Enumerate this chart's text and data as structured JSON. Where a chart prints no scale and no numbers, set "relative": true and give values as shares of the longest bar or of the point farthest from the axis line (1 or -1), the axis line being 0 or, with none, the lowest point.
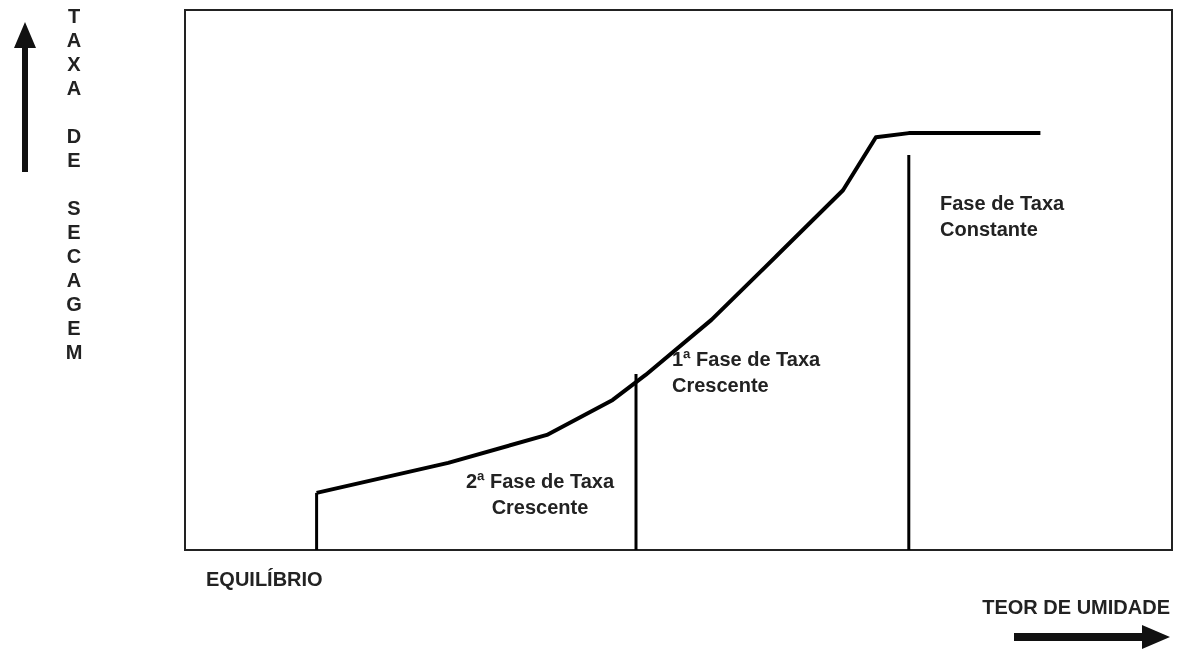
{
  "chart_data": {
    "type": "line",
    "relative": true,
    "xlabel": "TEOR DE UMIDADE",
    "ylabel": "TAXA DE SECAGEM",
    "categories": [
      null,
      null,
      null,
      null,
      null,
      null,
      null,
      null,
      null,
      null,
      null,
      null,
      null,
      null,
      null,
      null,
      null,
      null,
      null,
      null,
      null,
      null,
      null,
      null,
      null,
      null,
      null,
      null,
      null,
      null,
      null
    ],
    "series": [
      {
        "color": "#000000",
        "values": [
          null,
          null,
          null,
          null,
          0.137,
          null,
          null,
          null,
          0.209,
          null,
          null,
          0.276,
          null,
          0.36,
          0.42,
          null,
          0.552,
          null,
          0.707,
          null,
          0.863,
          0.99,
          1,
          null,
          null,
          null,
          1,
          null,
          null,
          null,
          null
        ]
      }
    ],
    "annotations": [
      "EQUILÍBRIO",
      "2ª Fase de Taxa Crescente",
      "1ª Fase de Taxa Crescente",
      "Fase de Taxa Constante"
    ],
    "grid": false,
    "legend": false,
    "marker": "none",
    "line_style": "solid"
  }
}
